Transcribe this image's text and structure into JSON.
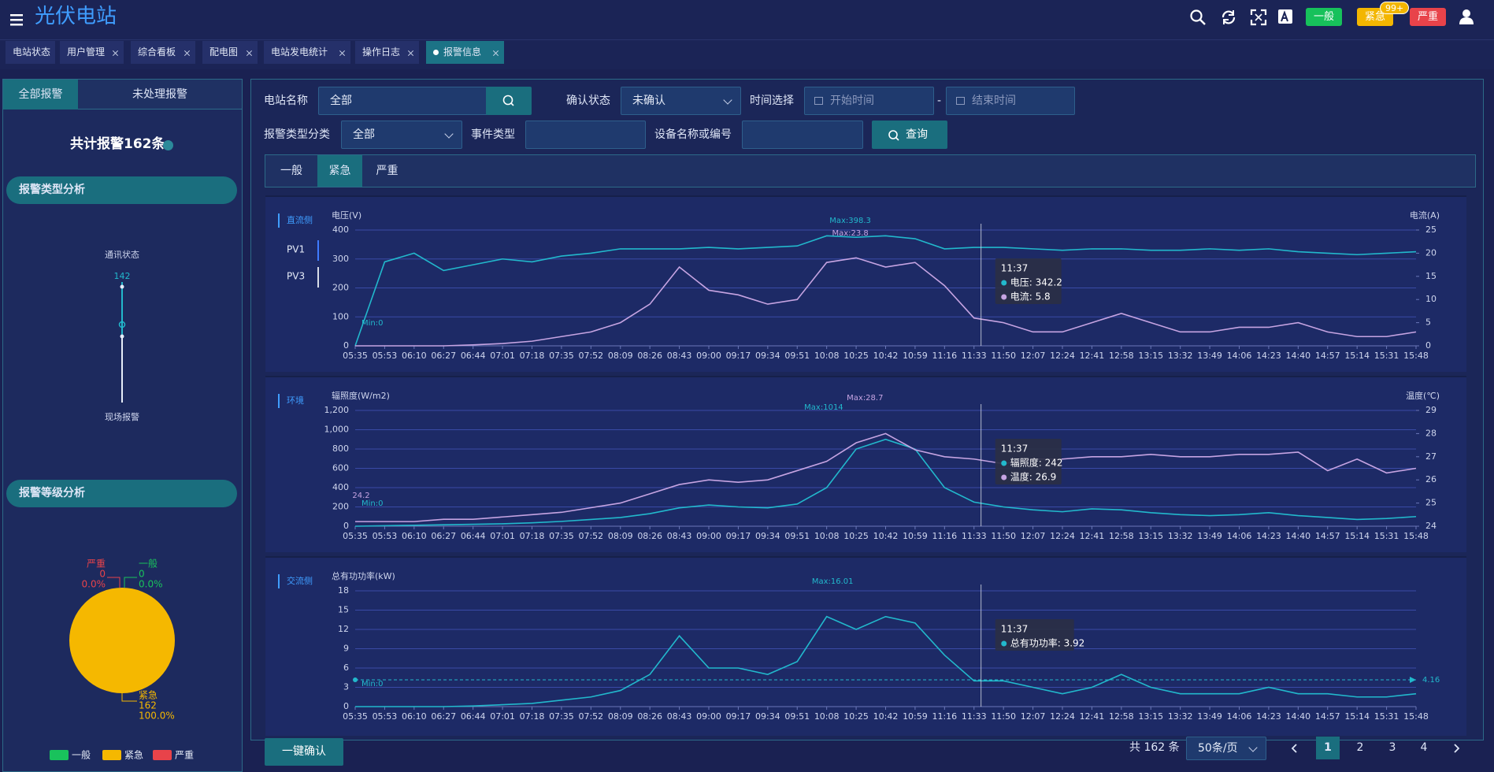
{
  "header": {
    "title": "光伏电站",
    "badges": [
      "一般",
      "紧急",
      "严重"
    ],
    "badge_count": "99+"
  },
  "tabs": [
    "电站状态",
    "用户管理",
    "综合看板",
    "配电图",
    "电站发电统计",
    "操作日志",
    "报警信息"
  ],
  "left_panel": {
    "tabs": [
      "全部报警",
      "未处理报警"
    ],
    "total": "共计报警162条",
    "sections": [
      "报警类型分析",
      "报警等级分析"
    ],
    "type_analysis": {
      "top": "通讯状态",
      "value": 142,
      "bottom": "现场报警"
    }
  },
  "filters": {
    "station_label": "电站名称",
    "station_value": "全部",
    "confirm_label": "确认状态",
    "confirm_value": "未确认",
    "time_label": "时间选择",
    "start_placeholder": "开始时间",
    "separator": "-",
    "end_placeholder": "结束时间",
    "alarm_type_label": "报警类型分类",
    "alarm_type_value": "全部",
    "event_type_label": "事件类型",
    "device_label": "设备名称或编号",
    "query": "查询"
  },
  "level_tabs": [
    "一般",
    "紧急",
    "严重"
  ],
  "chart_data": [
    {
      "type": "pie",
      "categories": [
        "一般",
        "紧急",
        "严重"
      ],
      "values": [
        0,
        162,
        0
      ],
      "percents": [
        0,
        100,
        0
      ],
      "percent_labels": [
        "0.0%",
        "100.0%",
        "0.0%"
      ],
      "colors": [
        "#19c25c",
        "#f5b800",
        "#e8434a"
      ]
    },
    {
      "type": "line",
      "title": "直流侧",
      "legend_tabs": [
        "PV1",
        "PV3"
      ],
      "ylabel": "电压(V)",
      "y2label": "电流(A)",
      "categories": [
        "05:35",
        "05:53",
        "06:10",
        "06:27",
        "06:44",
        "07:01",
        "07:18",
        "07:35",
        "07:52",
        "08:09",
        "08:26",
        "08:43",
        "09:00",
        "09:17",
        "09:34",
        "09:51",
        "10:08",
        "10:25",
        "10:42",
        "10:59",
        "11:16",
        "11:33",
        "11:50",
        "12:07",
        "12:24",
        "12:41",
        "12:58",
        "13:15",
        "13:32",
        "13:49",
        "14:06",
        "14:23",
        "14:40",
        "14:57",
        "15:14",
        "15:31",
        "15:48"
      ],
      "ylim": [
        0,
        400
      ],
      "yticks": [
        0,
        100,
        200,
        300,
        400
      ],
      "y2lim": [
        0,
        25
      ],
      "y2ticks": [
        0,
        5,
        10,
        15,
        20,
        25
      ],
      "grid": true,
      "series": [
        {
          "color": "#22b8cc",
          "values": [
            0,
            290,
            320,
            260,
            280,
            300,
            290,
            310,
            320,
            335,
            335,
            335,
            340,
            335,
            340,
            345,
            380,
            375,
            380,
            370,
            335,
            340,
            340,
            335,
            330,
            335,
            335,
            330,
            330,
            335,
            330,
            335,
            325,
            320,
            315,
            320,
            325
          ]
        },
        {
          "color": "#c6a4e2",
          "axis": "y2",
          "values": [
            0,
            0,
            0,
            0,
            0.2,
            0.5,
            1,
            2,
            3,
            5,
            9,
            17,
            12,
            11,
            9,
            10,
            18,
            19,
            17,
            18,
            13,
            6,
            5,
            3,
            3,
            5,
            7,
            5,
            3,
            3,
            4,
            4,
            5,
            3,
            2,
            2,
            3
          ]
        }
      ],
      "annotations": [
        "Max:398.3",
        "Max:23.8",
        "Min:0"
      ],
      "tooltip": {
        "time": "11:37",
        "items": [
          "电压: 342.2",
          "电流: 5.8"
        ]
      }
    },
    {
      "type": "line",
      "title": "环境",
      "ylabel": "辐照度(W/m2)",
      "y2label": "温度(℃)",
      "categories": [
        "05:35",
        "05:53",
        "06:10",
        "06:27",
        "06:44",
        "07:01",
        "07:18",
        "07:35",
        "07:52",
        "08:09",
        "08:26",
        "08:43",
        "09:00",
        "09:17",
        "09:34",
        "09:51",
        "10:08",
        "10:25",
        "10:42",
        "10:59",
        "11:16",
        "11:33",
        "11:50",
        "12:07",
        "12:24",
        "12:41",
        "12:58",
        "13:15",
        "13:32",
        "13:49",
        "14:06",
        "14:23",
        "14:40",
        "14:57",
        "15:14",
        "15:31",
        "15:48"
      ],
      "ylim": [
        0,
        1200
      ],
      "yticks": [
        0,
        200,
        400,
        600,
        800,
        {
          "value": 1000,
          "label": "1,000"
        },
        {
          "value": 1200,
          "label": "1,200"
        }
      ],
      "y2lim": [
        24,
        29
      ],
      "y2ticks": [
        24,
        25,
        26,
        27,
        28,
        29
      ],
      "grid": true,
      "series": [
        {
          "color": "#22b8cc",
          "values": [
            0,
            5,
            10,
            15,
            20,
            25,
            35,
            50,
            70,
            90,
            130,
            190,
            220,
            200,
            190,
            230,
            400,
            800,
            900,
            800,
            400,
            250,
            200,
            170,
            150,
            180,
            170,
            140,
            120,
            110,
            120,
            140,
            110,
            90,
            70,
            80,
            100
          ]
        },
        {
          "color": "#c6a4e2",
          "axis": "y2",
          "values": [
            24.2,
            24.2,
            24.2,
            24.3,
            24.3,
            24.4,
            24.5,
            24.6,
            24.8,
            25,
            25.4,
            25.8,
            26,
            25.9,
            26,
            26.4,
            26.8,
            27.6,
            28,
            27.3,
            27,
            26.9,
            26.7,
            26.9,
            26.9,
            27,
            27,
            27.1,
            27,
            27,
            27.1,
            27.1,
            27.2,
            26.4,
            26.9,
            26.3,
            26.5
          ]
        }
      ],
      "annotations": [
        "Max:1014",
        "Max:28.7",
        "24.2",
        "Min:0"
      ],
      "tooltip": {
        "time": "11:37",
        "items": [
          "辐照度: 242",
          "温度: 26.9"
        ]
      }
    },
    {
      "type": "line",
      "title": "交流侧",
      "ylabel": "总有功功率(kW)",
      "categories": [
        "05:35",
        "05:53",
        "06:10",
        "06:27",
        "06:44",
        "07:01",
        "07:18",
        "07:35",
        "07:52",
        "08:09",
        "08:26",
        "08:43",
        "09:00",
        "09:17",
        "09:34",
        "09:51",
        "10:08",
        "10:25",
        "10:42",
        "10:59",
        "11:16",
        "11:33",
        "11:50",
        "12:07",
        "12:24",
        "12:41",
        "12:58",
        "13:15",
        "13:32",
        "13:49",
        "14:06",
        "14:23",
        "14:40",
        "14:57",
        "15:14",
        "15:31",
        "15:48"
      ],
      "ylim": [
        0,
        18
      ],
      "yticks": [
        0,
        3,
        6,
        9,
        12,
        15,
        18
      ],
      "grid": true,
      "series": [
        {
          "color": "#22b8cc",
          "values": [
            0,
            0,
            0,
            0,
            0.1,
            0.3,
            0.5,
            1,
            1.5,
            2.5,
            5,
            11,
            6,
            6,
            5,
            7,
            14,
            12,
            14,
            13,
            8,
            4,
            4,
            3,
            2,
            3,
            5,
            3,
            2,
            2,
            2,
            3,
            2,
            2,
            1.5,
            1.5,
            2
          ]
        }
      ],
      "mark_line": 4.16,
      "annotations": [
        "Max:16.01",
        "Min:0"
      ],
      "tooltip": {
        "time": "11:37",
        "items": [
          "总有功功率: 3.92"
        ]
      }
    }
  ],
  "footer": {
    "confirm_all": "一键确认",
    "total": "共 162 条",
    "page_size": "50条/页",
    "pages": [
      1,
      2,
      3,
      4
    ]
  }
}
